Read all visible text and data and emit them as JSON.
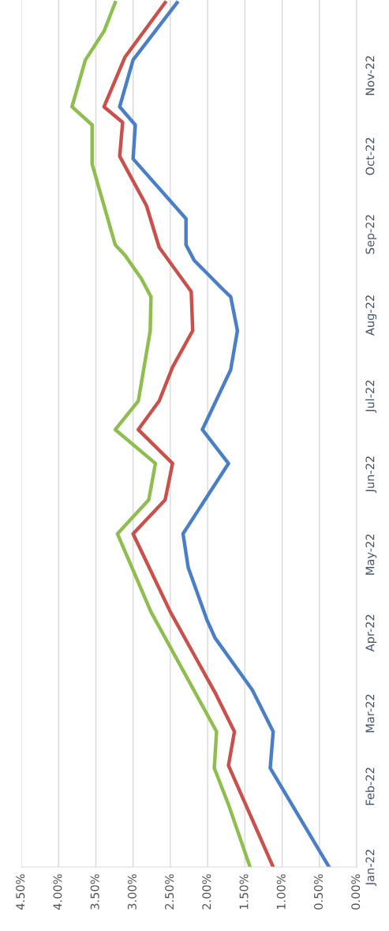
{
  "chart_data": {
    "type": "line",
    "orientation": "horizontal",
    "grid": "x",
    "xlim": [
      4.5,
      0
    ],
    "xticks": [
      {
        "value": 0,
        "label": "0.00%"
      },
      {
        "value": 0.5,
        "label": "0.50%"
      },
      {
        "value": 1,
        "label": "1.00%"
      },
      {
        "value": 1.5,
        "label": "1.50%"
      },
      {
        "value": 2,
        "label": "2.00%"
      },
      {
        "value": 2.5,
        "label": "2.50%"
      },
      {
        "value": 3,
        "label": "3.00%"
      },
      {
        "value": 3.5,
        "label": "3.50%"
      },
      {
        "value": 4,
        "label": "4.00%"
      },
      {
        "value": 4.5,
        "label": "4.50%"
      }
    ],
    "ylim": [
      "2022-01-01",
      "2022-11-30"
    ],
    "yticks": [
      {
        "value": "2022-01-01",
        "label": "Jan-22"
      },
      {
        "value": "2022-02-01",
        "label": "Feb-22"
      },
      {
        "value": "2022-03-01",
        "label": "Mar-22"
      },
      {
        "value": "2022-04-01",
        "label": "Apr-22"
      },
      {
        "value": "2022-05-01",
        "label": "May-22"
      },
      {
        "value": "2022-06-01",
        "label": "Jun-22"
      },
      {
        "value": "2022-07-01",
        "label": "Jul-22"
      },
      {
        "value": "2022-08-01",
        "label": "Aug-22"
      },
      {
        "value": "2022-09-01",
        "label": "Sep-22"
      },
      {
        "value": "2022-10-01",
        "label": "Oct-22"
      },
      {
        "value": "2022-11-01",
        "label": "Nov-22"
      }
    ],
    "series": [
      {
        "color": "#4a7fc8",
        "x": [
          "2022-01-01",
          "2022-02-08",
          "2022-02-22",
          "2022-03-10",
          "2022-03-30",
          "2022-04-06",
          "2022-04-26",
          "2022-05-09",
          "2022-06-05",
          "2022-06-18",
          "2022-07-11",
          "2022-07-26",
          "2022-08-08",
          "2022-08-11",
          "2022-08-22",
          "2022-08-28",
          "2022-09-07",
          "2022-09-30",
          "2022-10-13",
          "2022-10-20",
          "2022-11-07",
          "2022-11-29"
        ],
        "values": [
          0.37,
          1.16,
          1.12,
          1.4,
          1.9,
          2.01,
          2.26,
          2.33,
          1.72,
          2.07,
          1.69,
          1.6,
          1.69,
          1.8,
          2.18,
          2.29,
          2.29,
          3.0,
          2.97,
          3.18,
          3.0,
          2.41
        ]
      },
      {
        "color": "#c9504b",
        "x": [
          "2022-01-01",
          "2022-02-09",
          "2022-02-22",
          "2022-03-09",
          "2022-04-09",
          "2022-05-09",
          "2022-05-22",
          "2022-06-05",
          "2022-06-18",
          "2022-06-29",
          "2022-07-12",
          "2022-07-26",
          "2022-08-10",
          "2022-08-27",
          "2022-09-12",
          "2022-10-01",
          "2022-10-14",
          "2022-10-20",
          "2022-11-08",
          "2022-11-29"
        ],
        "values": [
          1.12,
          1.72,
          1.64,
          1.9,
          2.5,
          3.0,
          2.57,
          2.47,
          2.93,
          2.65,
          2.47,
          2.2,
          2.22,
          2.65,
          2.82,
          3.18,
          3.14,
          3.39,
          3.11,
          2.57
        ]
      },
      {
        "color": "#8fbe4f",
        "x": [
          "2022-01-01",
          "2022-01-25",
          "2022-02-08",
          "2022-02-22",
          "2022-04-09",
          "2022-05-09",
          "2022-05-22",
          "2022-06-05",
          "2022-06-18",
          "2022-06-29",
          "2022-07-26",
          "2022-08-08",
          "2022-08-15",
          "2022-08-24",
          "2022-08-28",
          "2022-09-12",
          "2022-09-28",
          "2022-10-13",
          "2022-10-20",
          "2022-11-07",
          "2022-11-18",
          "2022-11-29"
        ],
        "values": [
          1.43,
          1.72,
          1.91,
          1.88,
          2.76,
          3.21,
          2.79,
          2.7,
          3.24,
          2.93,
          2.77,
          2.76,
          2.89,
          3.11,
          3.24,
          3.39,
          3.55,
          3.55,
          3.82,
          3.64,
          3.39,
          3.24
        ]
      }
    ]
  }
}
